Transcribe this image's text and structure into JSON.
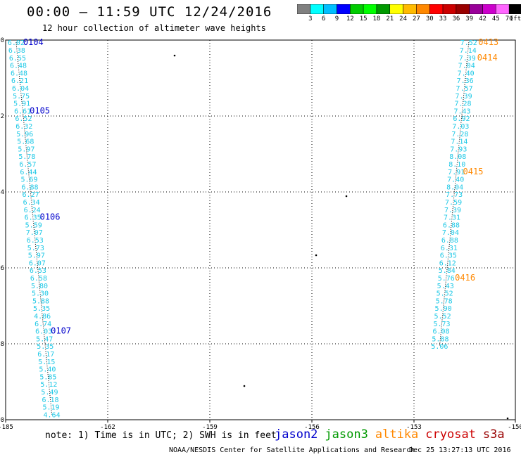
{
  "header": {
    "title": "00:00 – 11:59 UTC 12/24/2016",
    "subtitle": "12 hour collection of altimeter wave heights"
  },
  "colorbar": {
    "colors": [
      "#808080",
      "#00ffff",
      "#00bfff",
      "#0000ff",
      "#00cc00",
      "#00ff00",
      "#009900",
      "#ffff00",
      "#ffbb00",
      "#ff8800",
      "#ff0000",
      "#cc0000",
      "#990000",
      "#990099",
      "#cc00cc",
      "#ff66ff",
      "#000000"
    ],
    "ticks": [
      "3",
      "6",
      "9",
      "12",
      "15",
      "18",
      "21",
      "24",
      "27",
      "30",
      "33",
      "36",
      "39",
      "42",
      "45",
      "70"
    ],
    "unit": "(ft)"
  },
  "axes": {
    "x_ticks": [
      "-185",
      "-162",
      "-159",
      "-156",
      "-153",
      "-150"
    ],
    "y_ticks": [
      "0",
      "-2",
      "-4",
      "-6",
      "-8",
      "-10"
    ]
  },
  "track_west": {
    "color": "#1ec8e6",
    "labels": [
      {
        "lon": -184.28,
        "lat": -0.06,
        "v": "6.02"
      },
      {
        "lon": -184.23,
        "lat": -0.26,
        "v": "6.38"
      },
      {
        "lon": -184.18,
        "lat": -0.46,
        "v": "6.55"
      },
      {
        "lon": -184.13,
        "lat": -0.66,
        "v": "6.48"
      },
      {
        "lon": -184.08,
        "lat": -0.86,
        "v": "6.48"
      },
      {
        "lon": -184.03,
        "lat": -1.06,
        "v": "6.21"
      },
      {
        "lon": -183.98,
        "lat": -1.26,
        "v": "6.04"
      },
      {
        "lon": -183.93,
        "lat": -1.46,
        "v": "5.75"
      },
      {
        "lon": -183.88,
        "lat": -1.66,
        "v": "5.91"
      },
      {
        "lon": -183.83,
        "lat": -1.86,
        "v": "6.61"
      },
      {
        "lon": -183.77,
        "lat": -2.06,
        "v": "6.52"
      },
      {
        "lon": -183.73,
        "lat": -2.26,
        "v": "6.32"
      },
      {
        "lon": -183.68,
        "lat": -2.46,
        "v": "5.96"
      },
      {
        "lon": -183.63,
        "lat": -2.66,
        "v": "5.68"
      },
      {
        "lon": -183.58,
        "lat": -2.86,
        "v": "5.97"
      },
      {
        "lon": -183.53,
        "lat": -3.06,
        "v": "5.78"
      },
      {
        "lon": -183.48,
        "lat": -3.26,
        "v": "6.57"
      },
      {
        "lon": -183.43,
        "lat": -3.46,
        "v": "6.44"
      },
      {
        "lon": -183.38,
        "lat": -3.66,
        "v": "5.69"
      },
      {
        "lon": -183.33,
        "lat": -3.86,
        "v": "6.88"
      },
      {
        "lon": -183.28,
        "lat": -4.06,
        "v": "6.27"
      },
      {
        "lon": -183.23,
        "lat": -4.26,
        "v": "6.34"
      },
      {
        "lon": -183.18,
        "lat": -4.46,
        "v": "6.24"
      },
      {
        "lon": -183.13,
        "lat": -4.66,
        "v": "6.35"
      },
      {
        "lon": -183.08,
        "lat": -4.86,
        "v": "5.59"
      },
      {
        "lon": -183.03,
        "lat": -5.06,
        "v": "7.07"
      },
      {
        "lon": -182.98,
        "lat": -5.26,
        "v": "6.53"
      },
      {
        "lon": -182.93,
        "lat": -5.46,
        "v": "5.73"
      },
      {
        "lon": -182.88,
        "lat": -5.66,
        "v": "5.97"
      },
      {
        "lon": -182.83,
        "lat": -5.86,
        "v": "6.07"
      },
      {
        "lon": -182.78,
        "lat": -6.06,
        "v": "6.53"
      },
      {
        "lon": -182.73,
        "lat": -6.26,
        "v": "6.58"
      },
      {
        "lon": -182.68,
        "lat": -6.46,
        "v": "5.80"
      },
      {
        "lon": -182.63,
        "lat": -6.66,
        "v": "5.30"
      },
      {
        "lon": -182.58,
        "lat": -6.86,
        "v": "5.88"
      },
      {
        "lon": -182.53,
        "lat": -7.06,
        "v": "5.35"
      },
      {
        "lon": -182.48,
        "lat": -7.26,
        "v": "4.86"
      },
      {
        "lon": -182.43,
        "lat": -7.46,
        "v": "6.74"
      },
      {
        "lon": -182.38,
        "lat": -7.66,
        "v": "6.03"
      },
      {
        "lon": -182.33,
        "lat": -7.86,
        "v": "5.47"
      },
      {
        "lon": -182.28,
        "lat": -8.06,
        "v": "5.35"
      },
      {
        "lon": -182.23,
        "lat": -8.26,
        "v": "6.17"
      },
      {
        "lon": -182.18,
        "lat": -8.46,
        "v": "5.15"
      },
      {
        "lon": -182.13,
        "lat": -8.66,
        "v": "5.40"
      },
      {
        "lon": -182.08,
        "lat": -8.86,
        "v": "5.85"
      },
      {
        "lon": -182.03,
        "lat": -9.06,
        "v": "5.12"
      },
      {
        "lon": -181.98,
        "lat": -9.26,
        "v": "5.49"
      },
      {
        "lon": -181.93,
        "lat": -9.46,
        "v": "6.18"
      },
      {
        "lon": -181.88,
        "lat": -9.66,
        "v": "5.19"
      },
      {
        "lon": -181.83,
        "lat": -9.86,
        "v": "4.64"
      }
    ],
    "times": [
      {
        "lon": -183.8,
        "lat": -0.06,
        "t": "0104"
      },
      {
        "lon": -183.35,
        "lat": -1.86,
        "t": "0105"
      },
      {
        "lon": -182.65,
        "lat": -4.66,
        "t": "0106"
      },
      {
        "lon": -181.9,
        "lat": -7.66,
        "t": "0107"
      }
    ]
  },
  "track_east": {
    "color": "#1ec8e6",
    "labels": [
      {
        "lon": -153.2,
        "lat": -0.06,
        "v": "7.52"
      },
      {
        "lon": -153.25,
        "lat": -0.26,
        "v": "7.14"
      },
      {
        "lon": -153.3,
        "lat": -0.46,
        "v": "7.39"
      },
      {
        "lon": -153.35,
        "lat": -0.66,
        "v": "7.04"
      },
      {
        "lon": -153.4,
        "lat": -0.86,
        "v": "7.40"
      },
      {
        "lon": -153.45,
        "lat": -1.06,
        "v": "7.36"
      },
      {
        "lon": -153.5,
        "lat": -1.26,
        "v": "7.57"
      },
      {
        "lon": -153.55,
        "lat": -1.46,
        "v": "7.39"
      },
      {
        "lon": -153.6,
        "lat": -1.66,
        "v": "7.28"
      },
      {
        "lon": -153.65,
        "lat": -1.86,
        "v": "7.43"
      },
      {
        "lon": -153.7,
        "lat": -2.06,
        "v": "6.92"
      },
      {
        "lon": -153.75,
        "lat": -2.26,
        "v": "7.03"
      },
      {
        "lon": -153.8,
        "lat": -2.46,
        "v": "7.28"
      },
      {
        "lon": -153.85,
        "lat": -2.66,
        "v": "7.14"
      },
      {
        "lon": -153.9,
        "lat": -2.86,
        "v": "7.93"
      },
      {
        "lon": -153.95,
        "lat": -3.06,
        "v": "8.08"
      },
      {
        "lon": -154.0,
        "lat": -3.26,
        "v": "8.10"
      },
      {
        "lon": -154.05,
        "lat": -3.46,
        "v": "7.91"
      },
      {
        "lon": -154.1,
        "lat": -3.66,
        "v": "7.40"
      },
      {
        "lon": -154.15,
        "lat": -3.86,
        "v": "8.04"
      },
      {
        "lon": -154.2,
        "lat": -4.06,
        "v": "7.73"
      },
      {
        "lon": -154.25,
        "lat": -4.26,
        "v": "7.59"
      },
      {
        "lon": -154.3,
        "lat": -4.46,
        "v": "7.39"
      },
      {
        "lon": -154.35,
        "lat": -4.66,
        "v": "7.31"
      },
      {
        "lon": -154.4,
        "lat": -4.86,
        "v": "6.88"
      },
      {
        "lon": -154.45,
        "lat": -5.06,
        "v": "7.04"
      },
      {
        "lon": -154.5,
        "lat": -5.26,
        "v": "6.88"
      },
      {
        "lon": -154.55,
        "lat": -5.46,
        "v": "6.31"
      },
      {
        "lon": -154.6,
        "lat": -5.66,
        "v": "6.35"
      },
      {
        "lon": -154.65,
        "lat": -5.86,
        "v": "6.12"
      },
      {
        "lon": -154.7,
        "lat": -6.06,
        "v": "5.84"
      },
      {
        "lon": -154.75,
        "lat": -6.26,
        "v": "5.76"
      },
      {
        "lon": -154.8,
        "lat": -6.46,
        "v": "5.43"
      },
      {
        "lon": -154.85,
        "lat": -6.66,
        "v": "5.52"
      },
      {
        "lon": -154.9,
        "lat": -6.86,
        "v": "5.78"
      },
      {
        "lon": -154.95,
        "lat": -7.06,
        "v": "5.90"
      },
      {
        "lon": -155.0,
        "lat": -7.26,
        "v": "5.52"
      },
      {
        "lon": -155.05,
        "lat": -7.46,
        "v": "5.73"
      },
      {
        "lon": -155.1,
        "lat": -7.66,
        "v": "6.08"
      },
      {
        "lon": -155.15,
        "lat": -7.86,
        "v": "5.88"
      },
      {
        "lon": -155.2,
        "lat": -8.06,
        "v": "5.06"
      }
    ],
    "times": [
      {
        "lon": -152.55,
        "lat": -0.06,
        "t": "0413"
      },
      {
        "lon": -152.62,
        "lat": -0.46,
        "t": "0414"
      },
      {
        "lon": -153.6,
        "lat": -3.46,
        "t": "0415"
      },
      {
        "lon": -154.15,
        "lat": -6.26,
        "t": "0416"
      }
    ]
  },
  "footer": {
    "note": "note: 1) Time is in UTC; 2) SWH is in feet",
    "satellites": [
      {
        "name": "jason2",
        "color": "#0000cc"
      },
      {
        "name": "jason3",
        "color": "#009900"
      },
      {
        "name": "altika",
        "color": "#ff8800"
      },
      {
        "name": "cryosat",
        "color": "#cc0000"
      },
      {
        "name": "s3a",
        "color": "#990000"
      }
    ],
    "credit": "NOAA/NESDIS Center for Satellite Applications and Research",
    "timestamp": "Dec 25 13:27:13 UTC 2016"
  },
  "time_label_colors": {
    "west": "#0000cc",
    "east": "#ff8800"
  }
}
